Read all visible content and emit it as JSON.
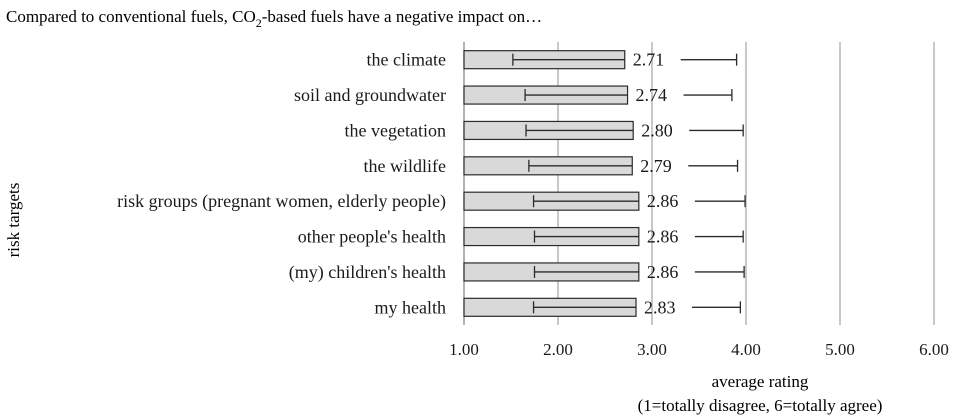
{
  "chart_data": {
    "type": "bar",
    "orientation": "horizontal",
    "title_parts": [
      "Compared to conventional fuels, CO",
      "2",
      "-based fuels have a negative impact on…"
    ],
    "ylabel": "risk targets",
    "xlabel_lines": [
      "average rating",
      "(1=totally disagree, 6=totally agree)"
    ],
    "xlim": [
      1,
      6
    ],
    "xticks": [
      "1.00",
      "2.00",
      "3.00",
      "4.00",
      "5.00",
      "6.00"
    ],
    "grid": true,
    "categories": [
      "the climate",
      "soil and groundwater",
      "the vegetation",
      "the wildlife",
      "risk groups (pregnant women, elderly people)",
      "other people's health",
      "(my) children's health",
      "my health"
    ],
    "values": [
      2.71,
      2.74,
      2.8,
      2.79,
      2.86,
      2.86,
      2.86,
      2.83
    ],
    "value_labels": [
      "2.71",
      "2.74",
      "2.80",
      "2.79",
      "2.86",
      "2.86",
      "2.86",
      "2.83"
    ],
    "error_low": [
      1.52,
      1.65,
      1.66,
      1.69,
      1.74,
      1.75,
      1.75,
      1.74
    ],
    "error_high": [
      3.9,
      3.85,
      3.97,
      3.91,
      3.99,
      3.97,
      3.98,
      3.94
    ],
    "colors": {
      "bar_fill": "#d9d9d9",
      "bar_stroke": "#2b2b2b",
      "grid": "#c8c8c8",
      "axis": "#7f7f7f",
      "text": "#1a1a1a"
    }
  }
}
